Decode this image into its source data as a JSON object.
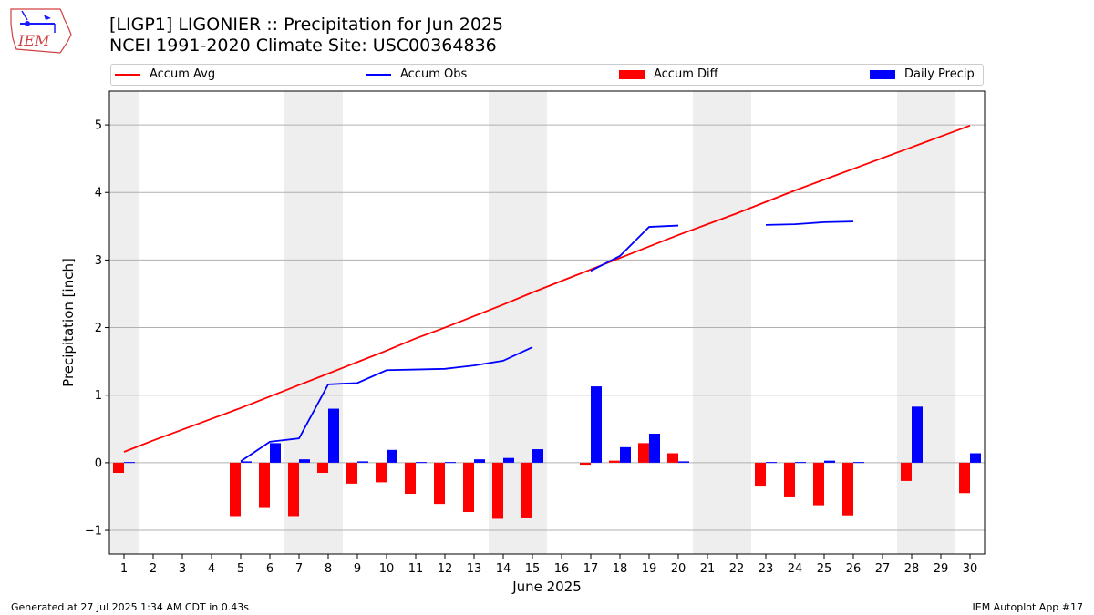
{
  "header": {
    "title_line1": "[LIGP1] LIGONIER :: Precipitation for Jun 2025",
    "title_line2": "NCEI 1991-2020 Climate Site: USC00364836",
    "logo_text": "IEM"
  },
  "legend": {
    "items": [
      {
        "label": "Accum Avg",
        "kind": "line",
        "color": "#ff0000"
      },
      {
        "label": "Accum Obs",
        "kind": "line",
        "color": "#0000ff"
      },
      {
        "label": "Accum Diff",
        "kind": "bar",
        "color": "#ff0000"
      },
      {
        "label": "Daily Precip",
        "kind": "bar",
        "color": "#0000ff"
      }
    ]
  },
  "footer": {
    "left": "Generated at 27 Jul 2025 1:34 AM CDT in 0.43s",
    "right": "IEM Autoplot App #17"
  },
  "chart_data": {
    "type": "bar",
    "xlabel": "June 2025",
    "ylabel": "Precipitation [inch]",
    "ylim": [
      -1.35,
      5.5
    ],
    "xlim": [
      0.5,
      30.5
    ],
    "yticks": [
      -1,
      0,
      1,
      2,
      3,
      4,
      5
    ],
    "ytick_labels": [
      "−1",
      "0",
      "1",
      "2",
      "3",
      "4",
      "5"
    ],
    "grid": "horizontal",
    "legend_position": "top",
    "days": [
      1,
      2,
      3,
      4,
      5,
      6,
      7,
      8,
      9,
      10,
      11,
      12,
      13,
      14,
      15,
      16,
      17,
      18,
      19,
      20,
      21,
      22,
      23,
      24,
      25,
      26,
      27,
      28,
      29,
      30
    ],
    "weekend_bands": [
      [
        0.5,
        1.5
      ],
      [
        6.5,
        8.5
      ],
      [
        13.5,
        15.5
      ],
      [
        20.5,
        22.5
      ],
      [
        27.5,
        29.5
      ]
    ],
    "series": [
      {
        "name": "Accum Avg",
        "type": "line",
        "color": "#ff0000",
        "values": [
          0.16,
          0.33,
          0.49,
          0.65,
          0.81,
          0.98,
          1.15,
          1.32,
          1.49,
          1.66,
          1.84,
          2.0,
          2.17,
          2.34,
          2.52,
          2.69,
          2.86,
          3.03,
          3.2,
          3.37,
          3.53,
          3.69,
          3.86,
          4.03,
          4.19,
          4.35,
          4.51,
          4.67,
          4.83,
          4.99
        ]
      },
      {
        "name": "Accum Obs",
        "type": "line",
        "color": "#0000ff",
        "values": [
          null,
          null,
          null,
          null,
          0.02,
          0.31,
          0.36,
          1.16,
          1.18,
          1.37,
          1.38,
          1.39,
          1.44,
          1.51,
          1.71,
          null,
          2.84,
          3.06,
          3.49,
          3.51,
          null,
          null,
          3.52,
          3.53,
          3.56,
          3.57,
          null,
          null,
          null,
          null
        ]
      },
      {
        "name": "Accum Diff",
        "type": "bar",
        "color": "#ff0000",
        "values": [
          -0.15,
          null,
          null,
          null,
          -0.79,
          -0.67,
          -0.79,
          -0.15,
          -0.31,
          -0.29,
          -0.46,
          -0.61,
          -0.73,
          -0.83,
          -0.81,
          null,
          -0.03,
          0.03,
          0.29,
          0.14,
          null,
          null,
          -0.34,
          -0.5,
          -0.63,
          -0.78,
          null,
          -0.27,
          null,
          -0.45
        ]
      },
      {
        "name": "Daily Precip",
        "type": "bar",
        "color": "#0000ff",
        "values": [
          0.01,
          null,
          null,
          null,
          0.02,
          0.29,
          0.05,
          0.8,
          0.02,
          0.19,
          0.01,
          0.01,
          0.05,
          0.07,
          0.2,
          null,
          1.13,
          0.23,
          0.43,
          0.02,
          null,
          null,
          0.01,
          0.01,
          0.03,
          0.01,
          null,
          0.83,
          null,
          0.14
        ]
      }
    ]
  }
}
